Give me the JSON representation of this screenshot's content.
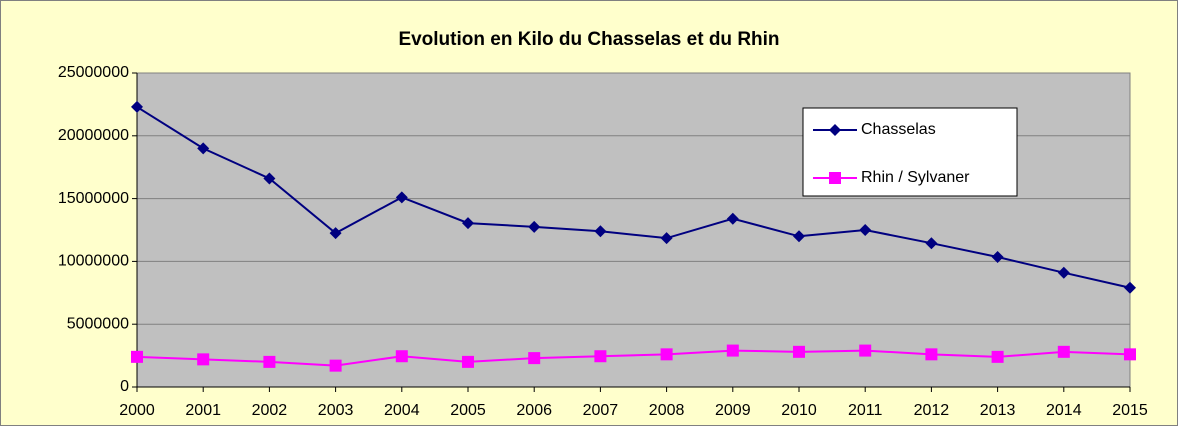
{
  "chart_data": {
    "type": "line",
    "title": "Evolution en Kilo du Chasselas et du Rhin",
    "categories": [
      "2000",
      "2001",
      "2002",
      "2003",
      "2004",
      "2005",
      "2006",
      "2007",
      "2008",
      "2009",
      "2010",
      "2011",
      "2012",
      "2013",
      "2014",
      "2015"
    ],
    "series": [
      {
        "name": "Chasselas",
        "color": "#000080",
        "marker": "diamond",
        "values": [
          22300000,
          19000000,
          16600000,
          12250000,
          15100000,
          13050000,
          12750000,
          12400000,
          11850000,
          13400000,
          12000000,
          12500000,
          11450000,
          10350000,
          9100000,
          7900000
        ]
      },
      {
        "name": "Rhin / Sylvaner",
        "color": "#FF00FF",
        "marker": "square",
        "values": [
          2400000,
          2200000,
          2000000,
          1700000,
          2450000,
          2000000,
          2300000,
          2450000,
          2600000,
          2900000,
          2800000,
          2900000,
          2600000,
          2400000,
          2800000,
          2600000
        ]
      }
    ],
    "ylim": [
      0,
      25000000
    ],
    "yticks": [
      0,
      5000000,
      10000000,
      15000000,
      20000000,
      25000000
    ],
    "grid": true
  }
}
